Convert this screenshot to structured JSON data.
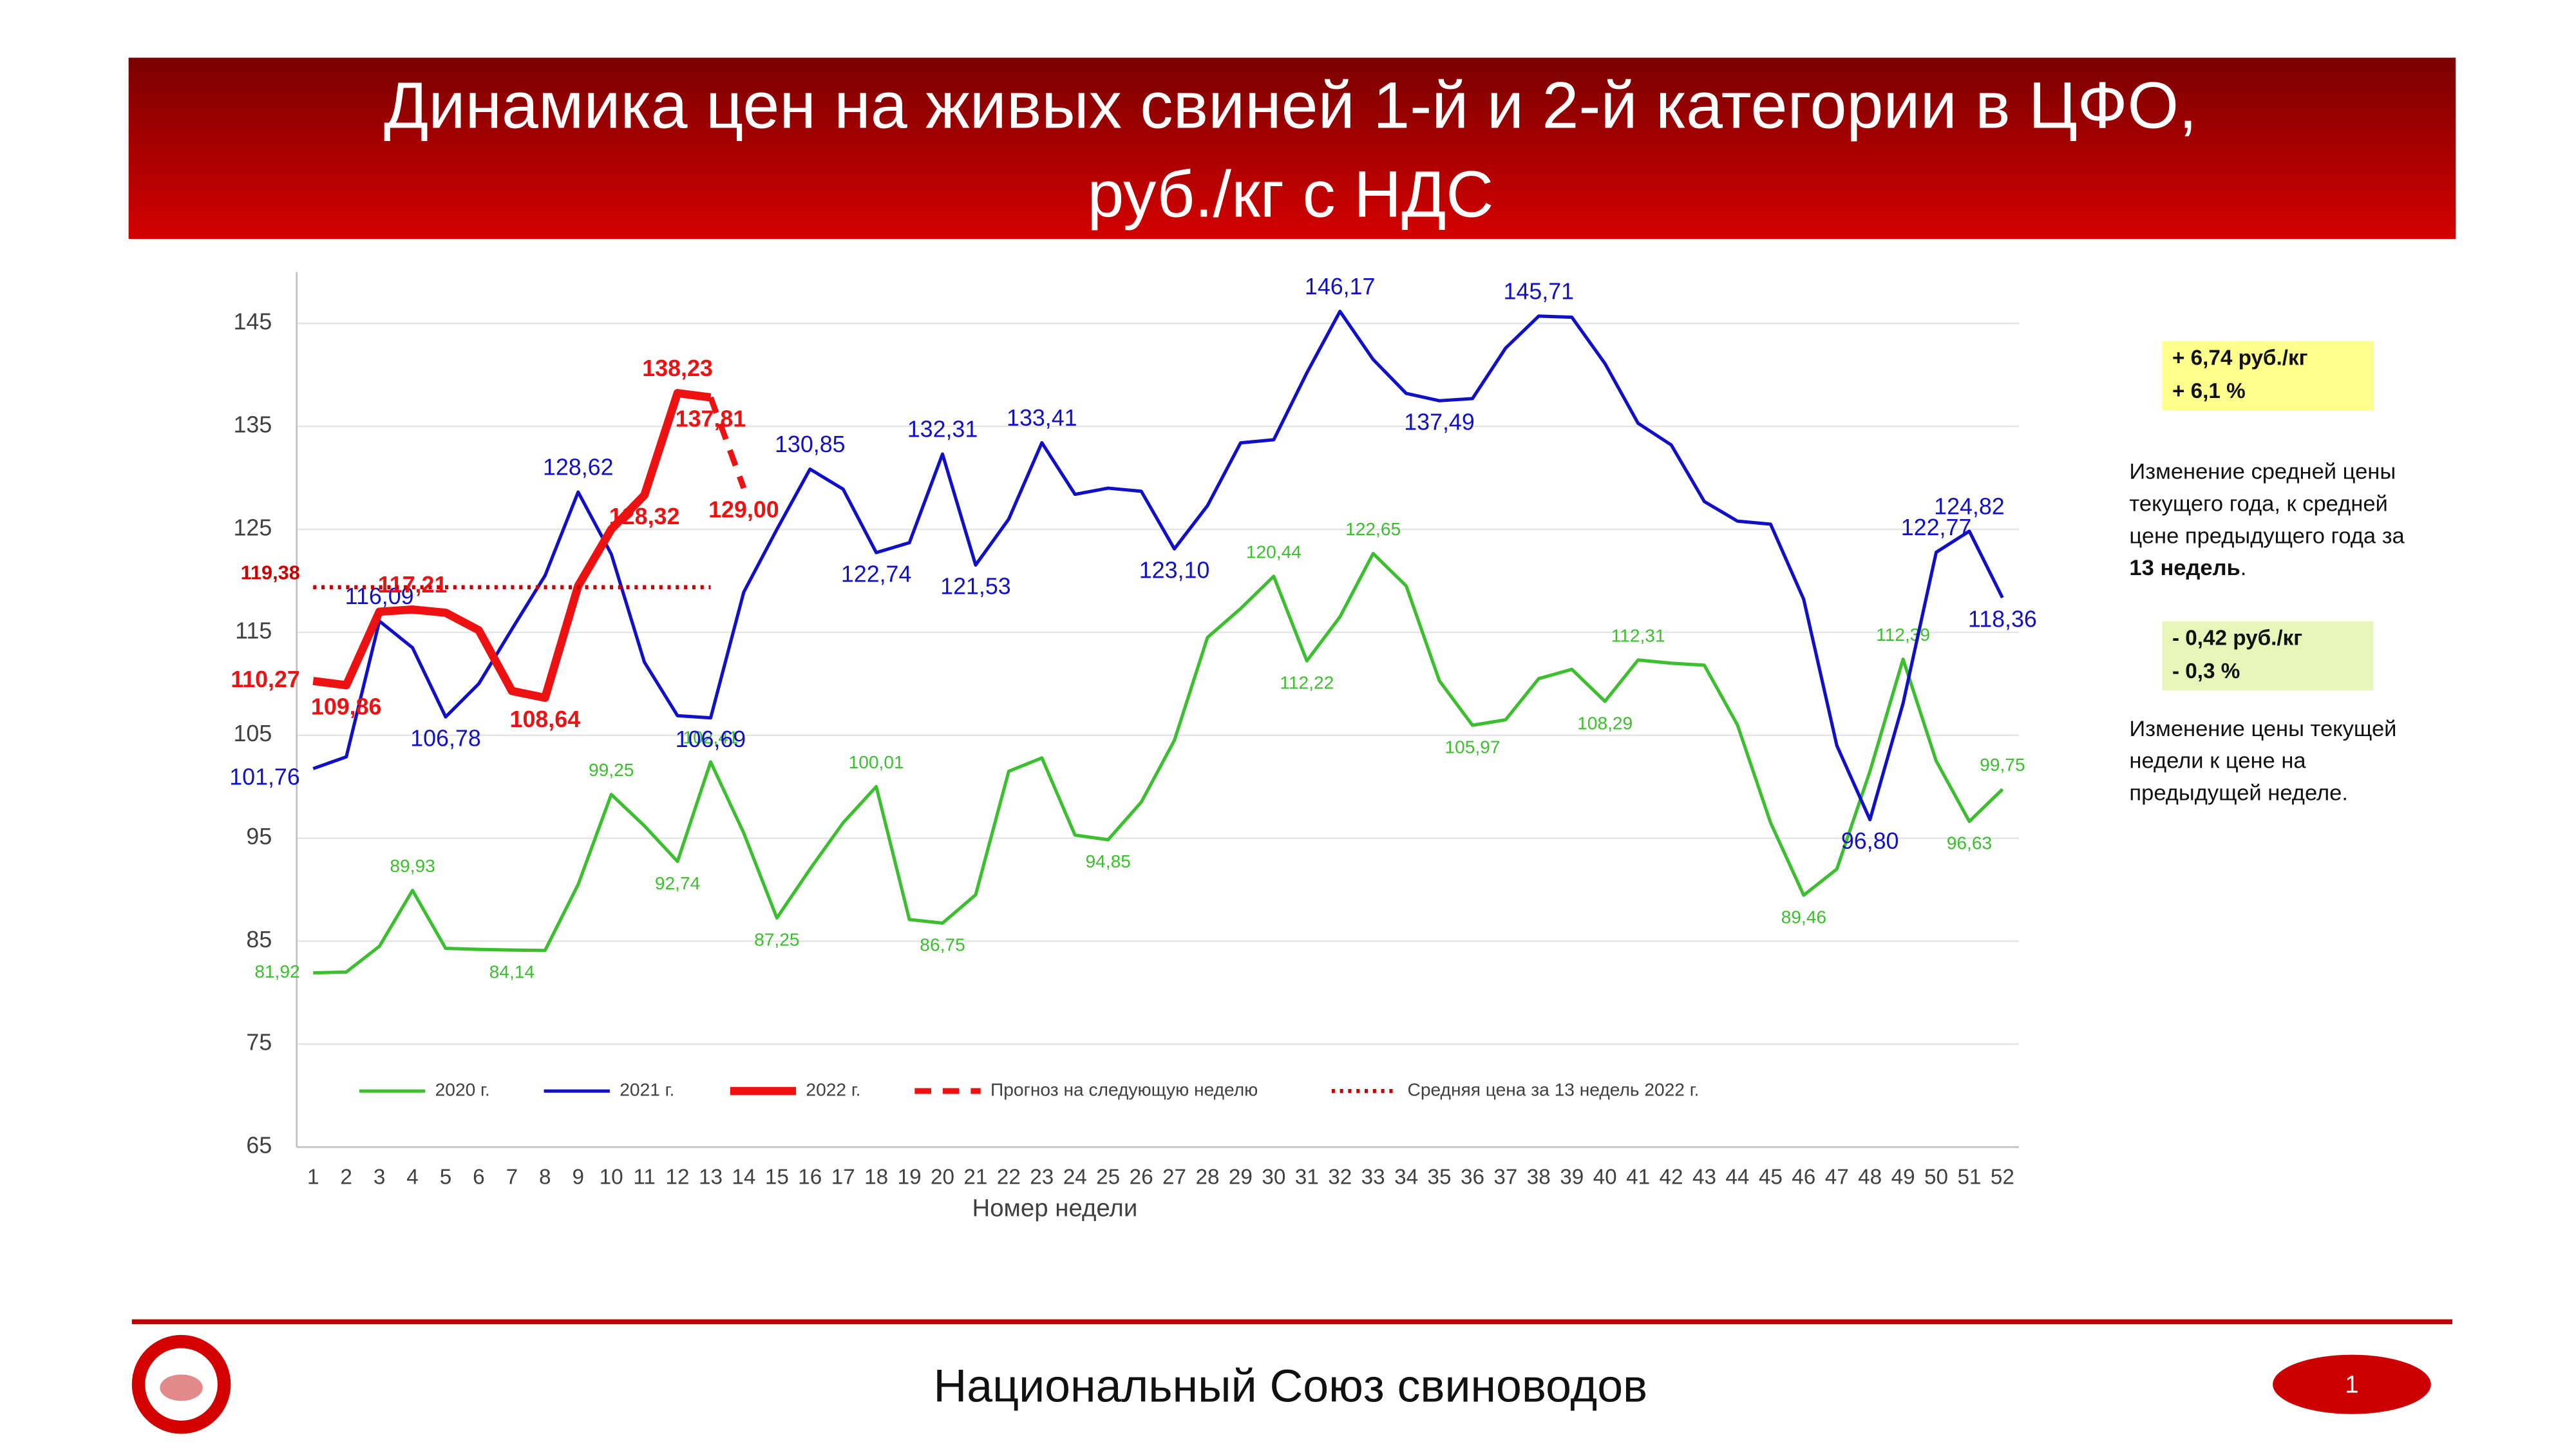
{
  "chart_data": {
    "type": "line",
    "title": [
      "Динамика цен на живых свиней 1-й и 2-й категории в ЦФО,",
      "руб./кг с НДС"
    ],
    "x_label": "Номер недели",
    "categories": [
      "1",
      "2",
      "3",
      "4",
      "5",
      "6",
      "7",
      "8",
      "9",
      "10",
      "11",
      "12",
      "13",
      "14",
      "15",
      "16",
      "17",
      "18",
      "19",
      "20",
      "21",
      "22",
      "23",
      "24",
      "25",
      "26",
      "27",
      "28",
      "29",
      "30",
      "31",
      "32",
      "33",
      "34",
      "35",
      "36",
      "37",
      "38",
      "39",
      "40",
      "41",
      "42",
      "43",
      "44",
      "45",
      "46",
      "47",
      "48",
      "49",
      "50",
      "51",
      "52"
    ],
    "ylim": [
      65,
      150
    ],
    "yticks": [
      65,
      75,
      85,
      95,
      105,
      115,
      125,
      135,
      145
    ],
    "grid": true,
    "legend": "bottom",
    "series": [
      {
        "name": "2020 г.",
        "color": "#3cbf2e",
        "line_style": "solid",
        "values": [
          81.92,
          82.0,
          84.5,
          89.93,
          84.3,
          84.2,
          84.14,
          84.1,
          90.5,
          99.25,
          96.2,
          92.74,
          102.41,
          95.5,
          87.25,
          92.0,
          96.5,
          100.01,
          87.1,
          86.75,
          89.5,
          101.5,
          102.8,
          95.3,
          94.85,
          98.5,
          104.5,
          114.5,
          117.3,
          120.44,
          112.22,
          116.5,
          122.65,
          119.5,
          110.3,
          105.97,
          106.5,
          110.5,
          111.4,
          108.29,
          112.31,
          112.0,
          111.8,
          106.0,
          96.5,
          89.46,
          92.0,
          101.5,
          112.39,
          102.5,
          96.63,
          99.75
        ],
        "value_labels": [
          "81,92",
          null,
          null,
          "89,93",
          null,
          null,
          "84,14",
          null,
          null,
          "99,25",
          null,
          "92,74",
          "102,41",
          null,
          "87,25",
          null,
          null,
          "100,01",
          null,
          "86,75",
          null,
          null,
          null,
          null,
          "94,85",
          null,
          null,
          null,
          null,
          "120,44",
          "112,22",
          null,
          "122,65",
          null,
          null,
          "105,97",
          null,
          null,
          null,
          "108,29",
          "112,31",
          null,
          null,
          null,
          null,
          "89,46",
          null,
          null,
          "112,39",
          null,
          "96,63",
          "99,75"
        ]
      },
      {
        "name": "2021 г.",
        "color": "#1010c8",
        "line_style": "solid",
        "values": [
          101.76,
          102.9,
          116.09,
          113.5,
          106.78,
          110.0,
          115.3,
          120.5,
          128.62,
          122.6,
          112.1,
          106.9,
          106.69,
          118.9,
          125.0,
          130.85,
          128.9,
          122.74,
          123.7,
          132.31,
          121.53,
          126.0,
          133.41,
          128.4,
          129.0,
          128.7,
          123.1,
          127.3,
          133.4,
          133.7,
          140.2,
          146.17,
          141.5,
          138.2,
          137.49,
          137.7,
          142.6,
          145.71,
          145.6,
          141.1,
          135.3,
          133.2,
          127.7,
          125.8,
          125.5,
          118.2,
          104.0,
          96.8,
          108.1,
          122.77,
          124.82,
          118.36
        ],
        "value_labels": [
          "101,76",
          null,
          "116,09",
          null,
          "106,78",
          null,
          null,
          null,
          "128,62",
          null,
          null,
          null,
          "106,69",
          null,
          null,
          "130,85",
          null,
          "122,74",
          null,
          "132,31",
          "121,53",
          null,
          "133,41",
          null,
          null,
          null,
          "123,10",
          null,
          null,
          null,
          null,
          "146,17",
          null,
          null,
          "137,49",
          null,
          null,
          "145,71",
          null,
          null,
          null,
          null,
          null,
          null,
          null,
          null,
          null,
          "96,80",
          null,
          "122,77",
          "124,82",
          "118,36"
        ]
      },
      {
        "name": "2022 г.",
        "color": "#ee1111",
        "line_style": "bold",
        "values": [
          110.27,
          109.86,
          117.0,
          117.21,
          116.9,
          115.2,
          109.3,
          108.64,
          119.5,
          125.0,
          128.32,
          138.23,
          137.81,
          null,
          null,
          null,
          null,
          null,
          null,
          null,
          null,
          null,
          null,
          null,
          null,
          null,
          null,
          null,
          null,
          null,
          null,
          null,
          null,
          null,
          null,
          null,
          null,
          null,
          null,
          null,
          null,
          null,
          null,
          null,
          null,
          null,
          null,
          null,
          null,
          null,
          null,
          null
        ],
        "value_labels": [
          "110,27",
          "109,86",
          null,
          "117,21",
          null,
          null,
          null,
          "108,64",
          null,
          null,
          "128,32",
          "138,23",
          "137,81",
          null,
          null,
          null,
          null,
          null,
          null,
          null,
          null,
          null,
          null,
          null,
          null,
          null,
          null,
          null,
          null,
          null,
          null,
          null,
          null,
          null,
          null,
          null,
          null,
          null,
          null,
          null,
          null,
          null,
          null,
          null,
          null,
          null,
          null,
          null,
          null,
          null,
          null,
          null
        ]
      },
      {
        "name": "Прогноз на следующую неделю",
        "color": "#ee1111",
        "line_style": "dashed",
        "values": [
          null,
          null,
          null,
          null,
          null,
          null,
          null,
          null,
          null,
          null,
          null,
          null,
          137.81,
          129.0,
          null,
          null,
          null,
          null,
          null,
          null,
          null,
          null,
          null,
          null,
          null,
          null,
          null,
          null,
          null,
          null,
          null,
          null,
          null,
          null,
          null,
          null,
          null,
          null,
          null,
          null,
          null,
          null,
          null,
          null,
          null,
          null,
          null,
          null,
          null,
          null,
          null,
          null
        ],
        "value_labels": [
          null,
          null,
          null,
          null,
          null,
          null,
          null,
          null,
          null,
          null,
          null,
          null,
          null,
          "129,00",
          null,
          null,
          null,
          null,
          null,
          null,
          null,
          null,
          null,
          null,
          null,
          null,
          null,
          null,
          null,
          null,
          null,
          null,
          null,
          null,
          null,
          null,
          null,
          null,
          null,
          null,
          null,
          null,
          null,
          null,
          null,
          null,
          null,
          null,
          null,
          null,
          null,
          null
        ]
      },
      {
        "name": "Средняя цена за 13 недель 2022 г.",
        "color": "#cc0000",
        "line_style": "dotted",
        "values": [
          119.38,
          119.38,
          119.38,
          119.38,
          119.38,
          119.38,
          119.38,
          119.38,
          119.38,
          119.38,
          119.38,
          119.38,
          119.38,
          null,
          null,
          null,
          null,
          null,
          null,
          null,
          null,
          null,
          null,
          null,
          null,
          null,
          null,
          null,
          null,
          null,
          null,
          null,
          null,
          null,
          null,
          null,
          null,
          null,
          null,
          null,
          null,
          null,
          null,
          null,
          null,
          null,
          null,
          null,
          null,
          null,
          null,
          null
        ],
        "value_labels": [
          "119,38",
          null,
          null,
          null,
          null,
          null,
          null,
          null,
          null,
          null,
          null,
          null,
          null,
          null,
          null,
          null,
          null,
          null,
          null,
          null,
          null,
          null,
          null,
          null,
          null,
          null,
          null,
          null,
          null,
          null,
          null,
          null,
          null,
          null,
          null,
          null,
          null,
          null,
          null,
          null,
          null,
          null,
          null,
          null,
          null,
          null,
          null,
          null,
          null,
          null,
          null,
          null
        ]
      }
    ],
    "annotations": [
      {
        "box": [
          "+ 6,74 руб./кг",
          "+ 6,1 %"
        ],
        "text": [
          "Изменение средней цены",
          "текущего года, к средней",
          "цене предыдущего года за"
        ],
        "bold": "13 недель",
        "tail": "."
      },
      {
        "box": [
          "- 0,42 руб./кг",
          "- 0,3 %"
        ],
        "text": [
          "Изменение цены текущей",
          "недели к цене на",
          "предыдущей неделе."
        ]
      }
    ]
  },
  "footer": {
    "organization": "Национальный Союз свиноводов",
    "page": "1"
  }
}
